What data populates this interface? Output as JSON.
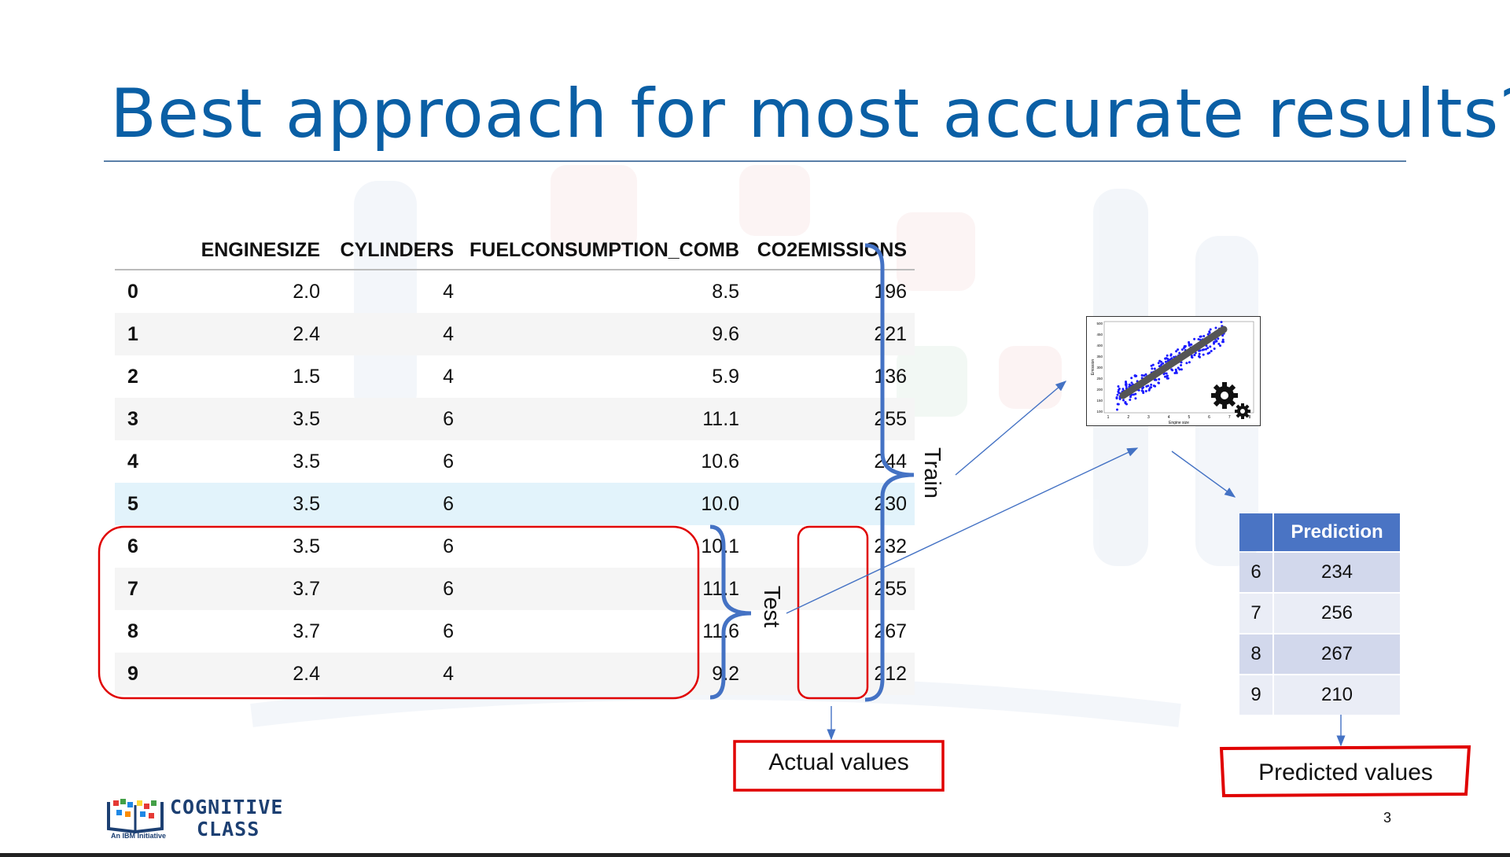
{
  "slide": {
    "title": "Best approach for most accurate results?",
    "page_number": "3"
  },
  "dataset": {
    "columns": [
      "ENGINESIZE",
      "CYLINDERS",
      "FUELCONSUMPTION_COMB",
      "CO2EMISSIONS"
    ],
    "rows": [
      {
        "index": "0",
        "enginesize": "2.0",
        "cylinders": "4",
        "fuelconsumption_comb": "8.5",
        "co2emissions": "196"
      },
      {
        "index": "1",
        "enginesize": "2.4",
        "cylinders": "4",
        "fuelconsumption_comb": "9.6",
        "co2emissions": "221"
      },
      {
        "index": "2",
        "enginesize": "1.5",
        "cylinders": "4",
        "fuelconsumption_comb": "5.9",
        "co2emissions": "136"
      },
      {
        "index": "3",
        "enginesize": "3.5",
        "cylinders": "6",
        "fuelconsumption_comb": "11.1",
        "co2emissions": "255"
      },
      {
        "index": "4",
        "enginesize": "3.5",
        "cylinders": "6",
        "fuelconsumption_comb": "10.6",
        "co2emissions": "244"
      },
      {
        "index": "5",
        "enginesize": "3.5",
        "cylinders": "6",
        "fuelconsumption_comb": "10.0",
        "co2emissions": "230"
      },
      {
        "index": "6",
        "enginesize": "3.5",
        "cylinders": "6",
        "fuelconsumption_comb": "10.1",
        "co2emissions": "232"
      },
      {
        "index": "7",
        "enginesize": "3.7",
        "cylinders": "6",
        "fuelconsumption_comb": "11.1",
        "co2emissions": "255"
      },
      {
        "index": "8",
        "enginesize": "3.7",
        "cylinders": "6",
        "fuelconsumption_comb": "11.6",
        "co2emissions": "267"
      },
      {
        "index": "9",
        "enginesize": "2.4",
        "cylinders": "4",
        "fuelconsumption_comb": "9.2",
        "co2emissions": "212"
      }
    ]
  },
  "labels": {
    "train": "Train",
    "test": "Test",
    "actual_values": "Actual values",
    "predicted_values": "Predicted values"
  },
  "prediction_table": {
    "header": "Prediction",
    "rows": [
      {
        "index": "6",
        "value": "234"
      },
      {
        "index": "7",
        "value": "256"
      },
      {
        "index": "8",
        "value": "267"
      },
      {
        "index": "9",
        "value": "210"
      }
    ]
  },
  "model_plot": {
    "xlabel": "Engine size",
    "ylabel": "Emission",
    "x_ticks": [
      "1",
      "2",
      "3",
      "4",
      "5",
      "6",
      "7",
      "8"
    ],
    "y_ticks": [
      "100",
      "150",
      "200",
      "250",
      "300",
      "350",
      "400",
      "450",
      "500"
    ],
    "point_color": "#1a1aff",
    "fit_line_color": "#555555"
  },
  "logo": {
    "line1": "COGNITIVE",
    "line2": "CLASS",
    "subtitle": "An IBM Initiative"
  },
  "colors": {
    "title": "#0a5fa5",
    "bracket": "#4472c4",
    "highlight_box": "#e00000",
    "table_header": "#4a74c4"
  }
}
